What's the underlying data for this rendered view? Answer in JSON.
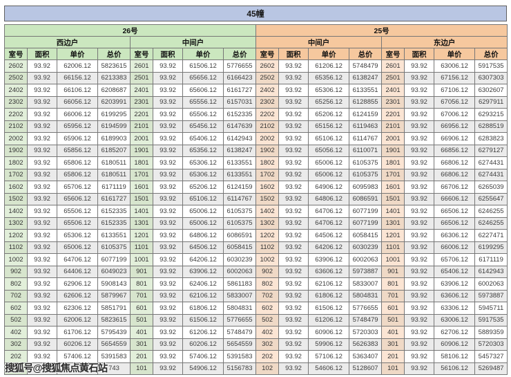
{
  "title": "45幢",
  "watermark": "搜狐号@搜狐焦点黄石站",
  "columns": [
    "室号",
    "面积",
    "单价",
    "总价"
  ],
  "sections": [
    {
      "label": "26号",
      "units": [
        "西边户",
        "中间户"
      ],
      "theme": "green"
    },
    {
      "label": "25号",
      "units": [
        "中间户",
        "东边户"
      ],
      "theme": "orange"
    }
  ],
  "colors": {
    "title_bar": "#b9c6e3",
    "section_green": "#cbe7bf",
    "section_orange": "#f6c89e",
    "room_green": "#e2efda",
    "room_orange": "#fbe5d4",
    "stripe": "#ebebeb",
    "border": "#767676"
  },
  "groups": [
    {
      "building": "26号",
      "unit": "西边户",
      "theme": "green",
      "rows": [
        [
          "2602",
          "93.92",
          "62006.12",
          "5823615"
        ],
        [
          "2502",
          "93.92",
          "66156.12",
          "6213383"
        ],
        [
          "2402",
          "93.92",
          "66106.12",
          "6208687"
        ],
        [
          "2302",
          "93.92",
          "66056.12",
          "6203991"
        ],
        [
          "2202",
          "93.92",
          "66006.12",
          "6199295"
        ],
        [
          "2102",
          "93.92",
          "65956.12",
          "6194599"
        ],
        [
          "2002",
          "93.92",
          "65906.12",
          "6189903"
        ],
        [
          "1902",
          "93.92",
          "65856.12",
          "6185207"
        ],
        [
          "1802",
          "93.92",
          "65806.12",
          "6180511"
        ],
        [
          "1702",
          "93.92",
          "65806.12",
          "6180511"
        ],
        [
          "1602",
          "93.92",
          "65706.12",
          "6171119"
        ],
        [
          "1502",
          "93.92",
          "65606.12",
          "6161727"
        ],
        [
          "1402",
          "93.92",
          "65506.12",
          "6152335"
        ],
        [
          "1302",
          "93.92",
          "65506.12",
          "6152335"
        ],
        [
          "1202",
          "93.92",
          "65306.12",
          "6133551"
        ],
        [
          "1102",
          "93.92",
          "65006.12",
          "6105375"
        ],
        [
          "1002",
          "93.92",
          "64706.12",
          "6077199"
        ],
        [
          "902",
          "93.92",
          "64406.12",
          "6049023"
        ],
        [
          "802",
          "93.92",
          "62906.12",
          "5908143"
        ],
        [
          "702",
          "93.92",
          "62606.12",
          "5879967"
        ],
        [
          "602",
          "93.92",
          "62306.12",
          "5851791"
        ],
        [
          "502",
          "93.92",
          "62006.12",
          "5823615"
        ],
        [
          "402",
          "93.92",
          "61706.12",
          "5795439"
        ],
        [
          "302",
          "93.92",
          "60206.12",
          "5654559"
        ],
        [
          "202",
          "93.92",
          "57406.12",
          "5391583"
        ],
        [
          "",
          "",
          "",
          "743"
        ]
      ]
    },
    {
      "building": "26号",
      "unit": "中间户",
      "theme": "green",
      "rows": [
        [
          "2601",
          "93.92",
          "61506.12",
          "5776655"
        ],
        [
          "2501",
          "93.92",
          "65656.12",
          "6166423"
        ],
        [
          "2401",
          "93.92",
          "65606.12",
          "6161727"
        ],
        [
          "2301",
          "93.92",
          "65556.12",
          "6157031"
        ],
        [
          "2201",
          "93.92",
          "65506.12",
          "6152335"
        ],
        [
          "2101",
          "93.92",
          "65456.12",
          "6147639"
        ],
        [
          "2001",
          "93.92",
          "65406.12",
          "6142943"
        ],
        [
          "1901",
          "93.92",
          "65356.12",
          "6138247"
        ],
        [
          "1801",
          "93.92",
          "65306.12",
          "6133551"
        ],
        [
          "1701",
          "93.92",
          "65306.12",
          "6133551"
        ],
        [
          "1601",
          "93.92",
          "65206.12",
          "6124159"
        ],
        [
          "1501",
          "93.92",
          "65106.12",
          "6114767"
        ],
        [
          "1401",
          "93.92",
          "65006.12",
          "6105375"
        ],
        [
          "1301",
          "93.92",
          "65006.12",
          "6105375"
        ],
        [
          "1201",
          "93.92",
          "64806.12",
          "6086591"
        ],
        [
          "1101",
          "93.92",
          "64506.12",
          "6058415"
        ],
        [
          "1001",
          "93.92",
          "64206.12",
          "6030239"
        ],
        [
          "901",
          "93.92",
          "63906.12",
          "6002063"
        ],
        [
          "801",
          "93.92",
          "62406.12",
          "5861183"
        ],
        [
          "701",
          "93.92",
          "62106.12",
          "5833007"
        ],
        [
          "601",
          "93.92",
          "61806.12",
          "5804831"
        ],
        [
          "501",
          "93.92",
          "61506.12",
          "5776655"
        ],
        [
          "401",
          "93.92",
          "61206.12",
          "5748479"
        ],
        [
          "301",
          "93.92",
          "60206.12",
          "5654559"
        ],
        [
          "201",
          "93.92",
          "57406.12",
          "5391583"
        ],
        [
          "101",
          "93.92",
          "54906.12",
          "5156783"
        ]
      ]
    },
    {
      "building": "25号",
      "unit": "中间户",
      "theme": "orange",
      "rows": [
        [
          "2602",
          "93.92",
          "61206.12",
          "5748479"
        ],
        [
          "2502",
          "93.92",
          "65356.12",
          "6138247"
        ],
        [
          "2402",
          "93.92",
          "65306.12",
          "6133551"
        ],
        [
          "2302",
          "93.92",
          "65256.12",
          "6128855"
        ],
        [
          "2202",
          "93.92",
          "65206.12",
          "6124159"
        ],
        [
          "2102",
          "93.92",
          "65156.12",
          "6119463"
        ],
        [
          "2002",
          "93.92",
          "65106.12",
          "6114767"
        ],
        [
          "1902",
          "93.92",
          "65056.12",
          "6110071"
        ],
        [
          "1802",
          "93.92",
          "65006.12",
          "6105375"
        ],
        [
          "1702",
          "93.92",
          "65006.12",
          "6105375"
        ],
        [
          "1602",
          "93.92",
          "64906.12",
          "6095983"
        ],
        [
          "1502",
          "93.92",
          "64806.12",
          "6086591"
        ],
        [
          "1402",
          "93.92",
          "64706.12",
          "6077199"
        ],
        [
          "1302",
          "93.92",
          "64706.12",
          "6077199"
        ],
        [
          "1202",
          "93.92",
          "64506.12",
          "6058415"
        ],
        [
          "1102",
          "93.92",
          "64206.12",
          "6030239"
        ],
        [
          "1002",
          "93.92",
          "63906.12",
          "6002063"
        ],
        [
          "902",
          "93.92",
          "63606.12",
          "5973887"
        ],
        [
          "802",
          "93.92",
          "62106.12",
          "5833007"
        ],
        [
          "702",
          "93.92",
          "61806.12",
          "5804831"
        ],
        [
          "602",
          "93.92",
          "61506.12",
          "5776655"
        ],
        [
          "502",
          "93.92",
          "61206.12",
          "5748479"
        ],
        [
          "402",
          "93.92",
          "60906.12",
          "5720303"
        ],
        [
          "302",
          "93.92",
          "59906.12",
          "5626383"
        ],
        [
          "202",
          "93.92",
          "57106.12",
          "5363407"
        ],
        [
          "102",
          "93.92",
          "54606.12",
          "5128607"
        ]
      ]
    },
    {
      "building": "25号",
      "unit": "东边户",
      "theme": "orange",
      "rows": [
        [
          "2601",
          "93.92",
          "63006.12",
          "5917535"
        ],
        [
          "2501",
          "93.92",
          "67156.12",
          "6307303"
        ],
        [
          "2401",
          "93.92",
          "67106.12",
          "6302607"
        ],
        [
          "2301",
          "93.92",
          "67056.12",
          "6297911"
        ],
        [
          "2201",
          "93.92",
          "67006.12",
          "6293215"
        ],
        [
          "2101",
          "93.92",
          "66956.12",
          "6288519"
        ],
        [
          "2001",
          "93.92",
          "66906.12",
          "6283823"
        ],
        [
          "1901",
          "93.92",
          "66856.12",
          "6279127"
        ],
        [
          "1801",
          "93.92",
          "66806.12",
          "6274431"
        ],
        [
          "1701",
          "93.92",
          "66806.12",
          "6274431"
        ],
        [
          "1601",
          "93.92",
          "66706.12",
          "6265039"
        ],
        [
          "1501",
          "93.92",
          "66606.12",
          "6255647"
        ],
        [
          "1401",
          "93.92",
          "66506.12",
          "6246255"
        ],
        [
          "1301",
          "93.92",
          "66506.12",
          "6246255"
        ],
        [
          "1201",
          "93.92",
          "66306.12",
          "6227471"
        ],
        [
          "1101",
          "93.92",
          "66006.12",
          "6199295"
        ],
        [
          "1001",
          "93.92",
          "65706.12",
          "6171119"
        ],
        [
          "901",
          "93.92",
          "65406.12",
          "6142943"
        ],
        [
          "801",
          "93.92",
          "63906.12",
          "6002063"
        ],
        [
          "701",
          "93.92",
          "63606.12",
          "5973887"
        ],
        [
          "601",
          "93.92",
          "63306.12",
          "5945711"
        ],
        [
          "501",
          "93.92",
          "63006.12",
          "5917535"
        ],
        [
          "401",
          "93.92",
          "62706.12",
          "5889359"
        ],
        [
          "301",
          "93.92",
          "60906.12",
          "5720303"
        ],
        [
          "201",
          "93.92",
          "58106.12",
          "5457327"
        ],
        [
          "101",
          "93.92",
          "56106.12",
          "5269487"
        ]
      ]
    }
  ]
}
